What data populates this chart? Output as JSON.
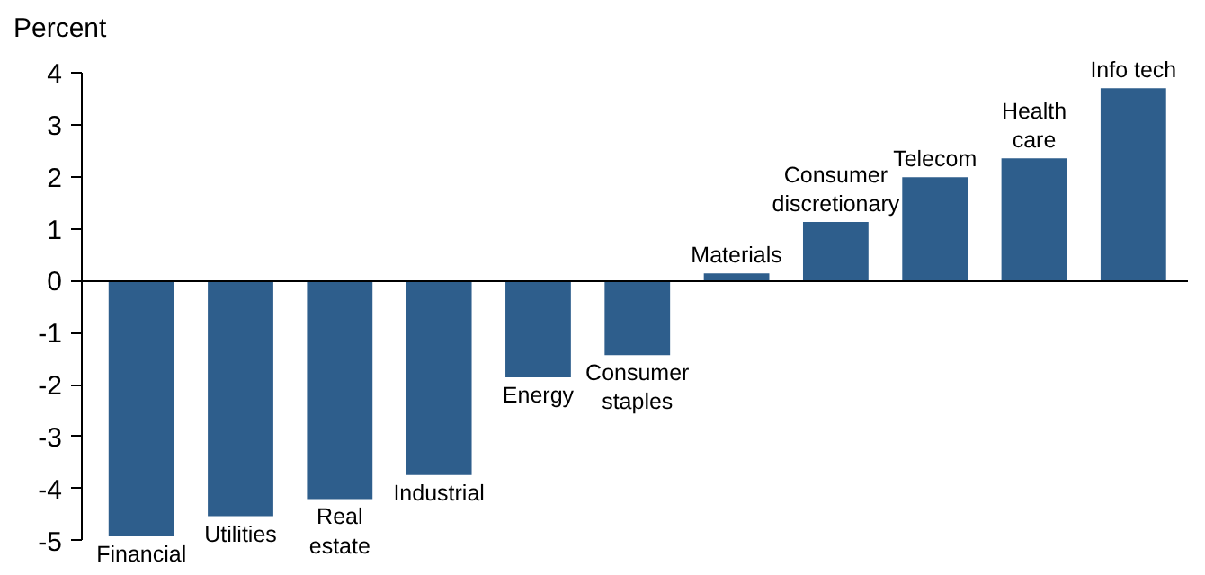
{
  "chart_data": {
    "type": "bar",
    "ylabel": "Percent",
    "categories": [
      "Financial",
      "Utilities",
      "Real estate",
      "Industrial",
      "Energy",
      "Consumer staples",
      "Materials",
      "Consumer discretionary",
      "Telecom",
      "Health care",
      "Info tech"
    ],
    "values": [
      -4.92,
      -4.53,
      -4.2,
      -3.74,
      -1.86,
      -1.43,
      0.14,
      1.13,
      1.99,
      2.35,
      3.7
    ],
    "color": "#2e5e8c",
    "ylim": [
      -5,
      4
    ],
    "yticks": [
      -5,
      -4,
      -3,
      -2,
      -1,
      0,
      1,
      2,
      3,
      4
    ],
    "tick_labels": "y"
  }
}
